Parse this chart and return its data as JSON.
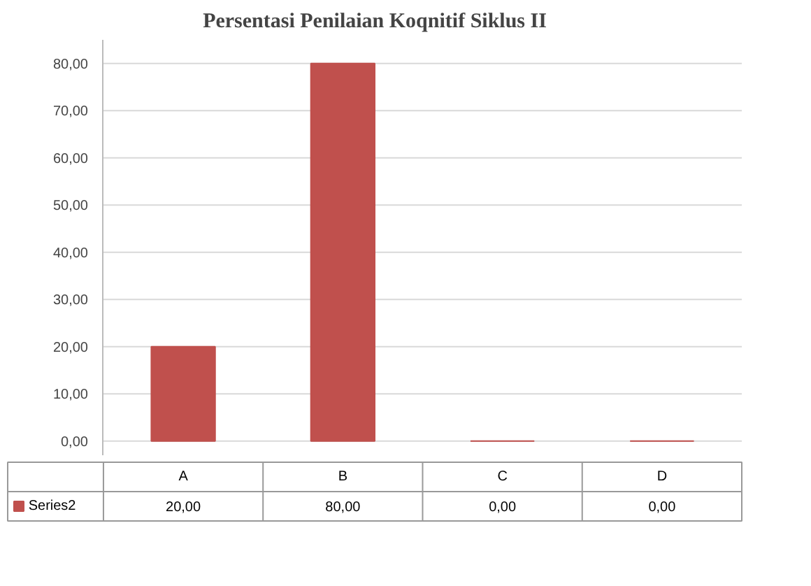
{
  "chart_data": {
    "type": "bar",
    "title": "Persentasi Penilaian Koqnitif Siklus II",
    "categories": [
      "A",
      "B",
      "C",
      "D"
    ],
    "series": [
      {
        "name": "Series2",
        "color": "#c0504d",
        "values": [
          20,
          80,
          0,
          0
        ],
        "value_labels": [
          "20,00",
          "80,00",
          "0,00",
          "0,00"
        ]
      }
    ],
    "ylim": [
      -3,
      85
    ],
    "yticks": [
      {
        "value": 0,
        "label": "0,00"
      },
      {
        "value": 10,
        "label": "10,00"
      },
      {
        "value": 20,
        "label": "20,00"
      },
      {
        "value": 30,
        "label": "30,00"
      },
      {
        "value": 40,
        "label": "40,00"
      },
      {
        "value": 50,
        "label": "50,00"
      },
      {
        "value": 60,
        "label": "60,00"
      },
      {
        "value": 70,
        "label": "70,00"
      },
      {
        "value": 80,
        "label": "80,00"
      }
    ],
    "grid": "y",
    "legend": "bottom"
  }
}
